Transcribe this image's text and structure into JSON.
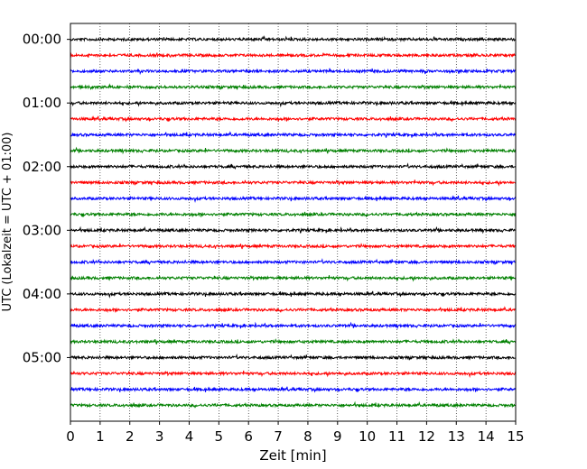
{
  "chart_data": {
    "type": "line",
    "title": "",
    "xlabel": "Zeit  [min]",
    "ylabel": "UTC (Lokalzeit = UTC + 01:00)",
    "xlim": [
      0,
      15
    ],
    "x_ticks": [
      0,
      1,
      2,
      3,
      4,
      5,
      6,
      7,
      8,
      9,
      10,
      11,
      12,
      13,
      14,
      15
    ],
    "y_ticks": [
      {
        "value": 0,
        "label": "00:00"
      },
      {
        "value": 4,
        "label": "01:00"
      },
      {
        "value": 8,
        "label": "02:00"
      },
      {
        "value": 12,
        "label": "03:00"
      },
      {
        "value": 16,
        "label": "04:00"
      },
      {
        "value": 20,
        "label": "05:00"
      }
    ],
    "row_count": 24,
    "row_minutes": 15,
    "ylim": [
      -1,
      24
    ],
    "grid": "vertical-dotted",
    "colors": [
      "#000000",
      "#ff0000",
      "#0000ff",
      "#008000"
    ]
  }
}
